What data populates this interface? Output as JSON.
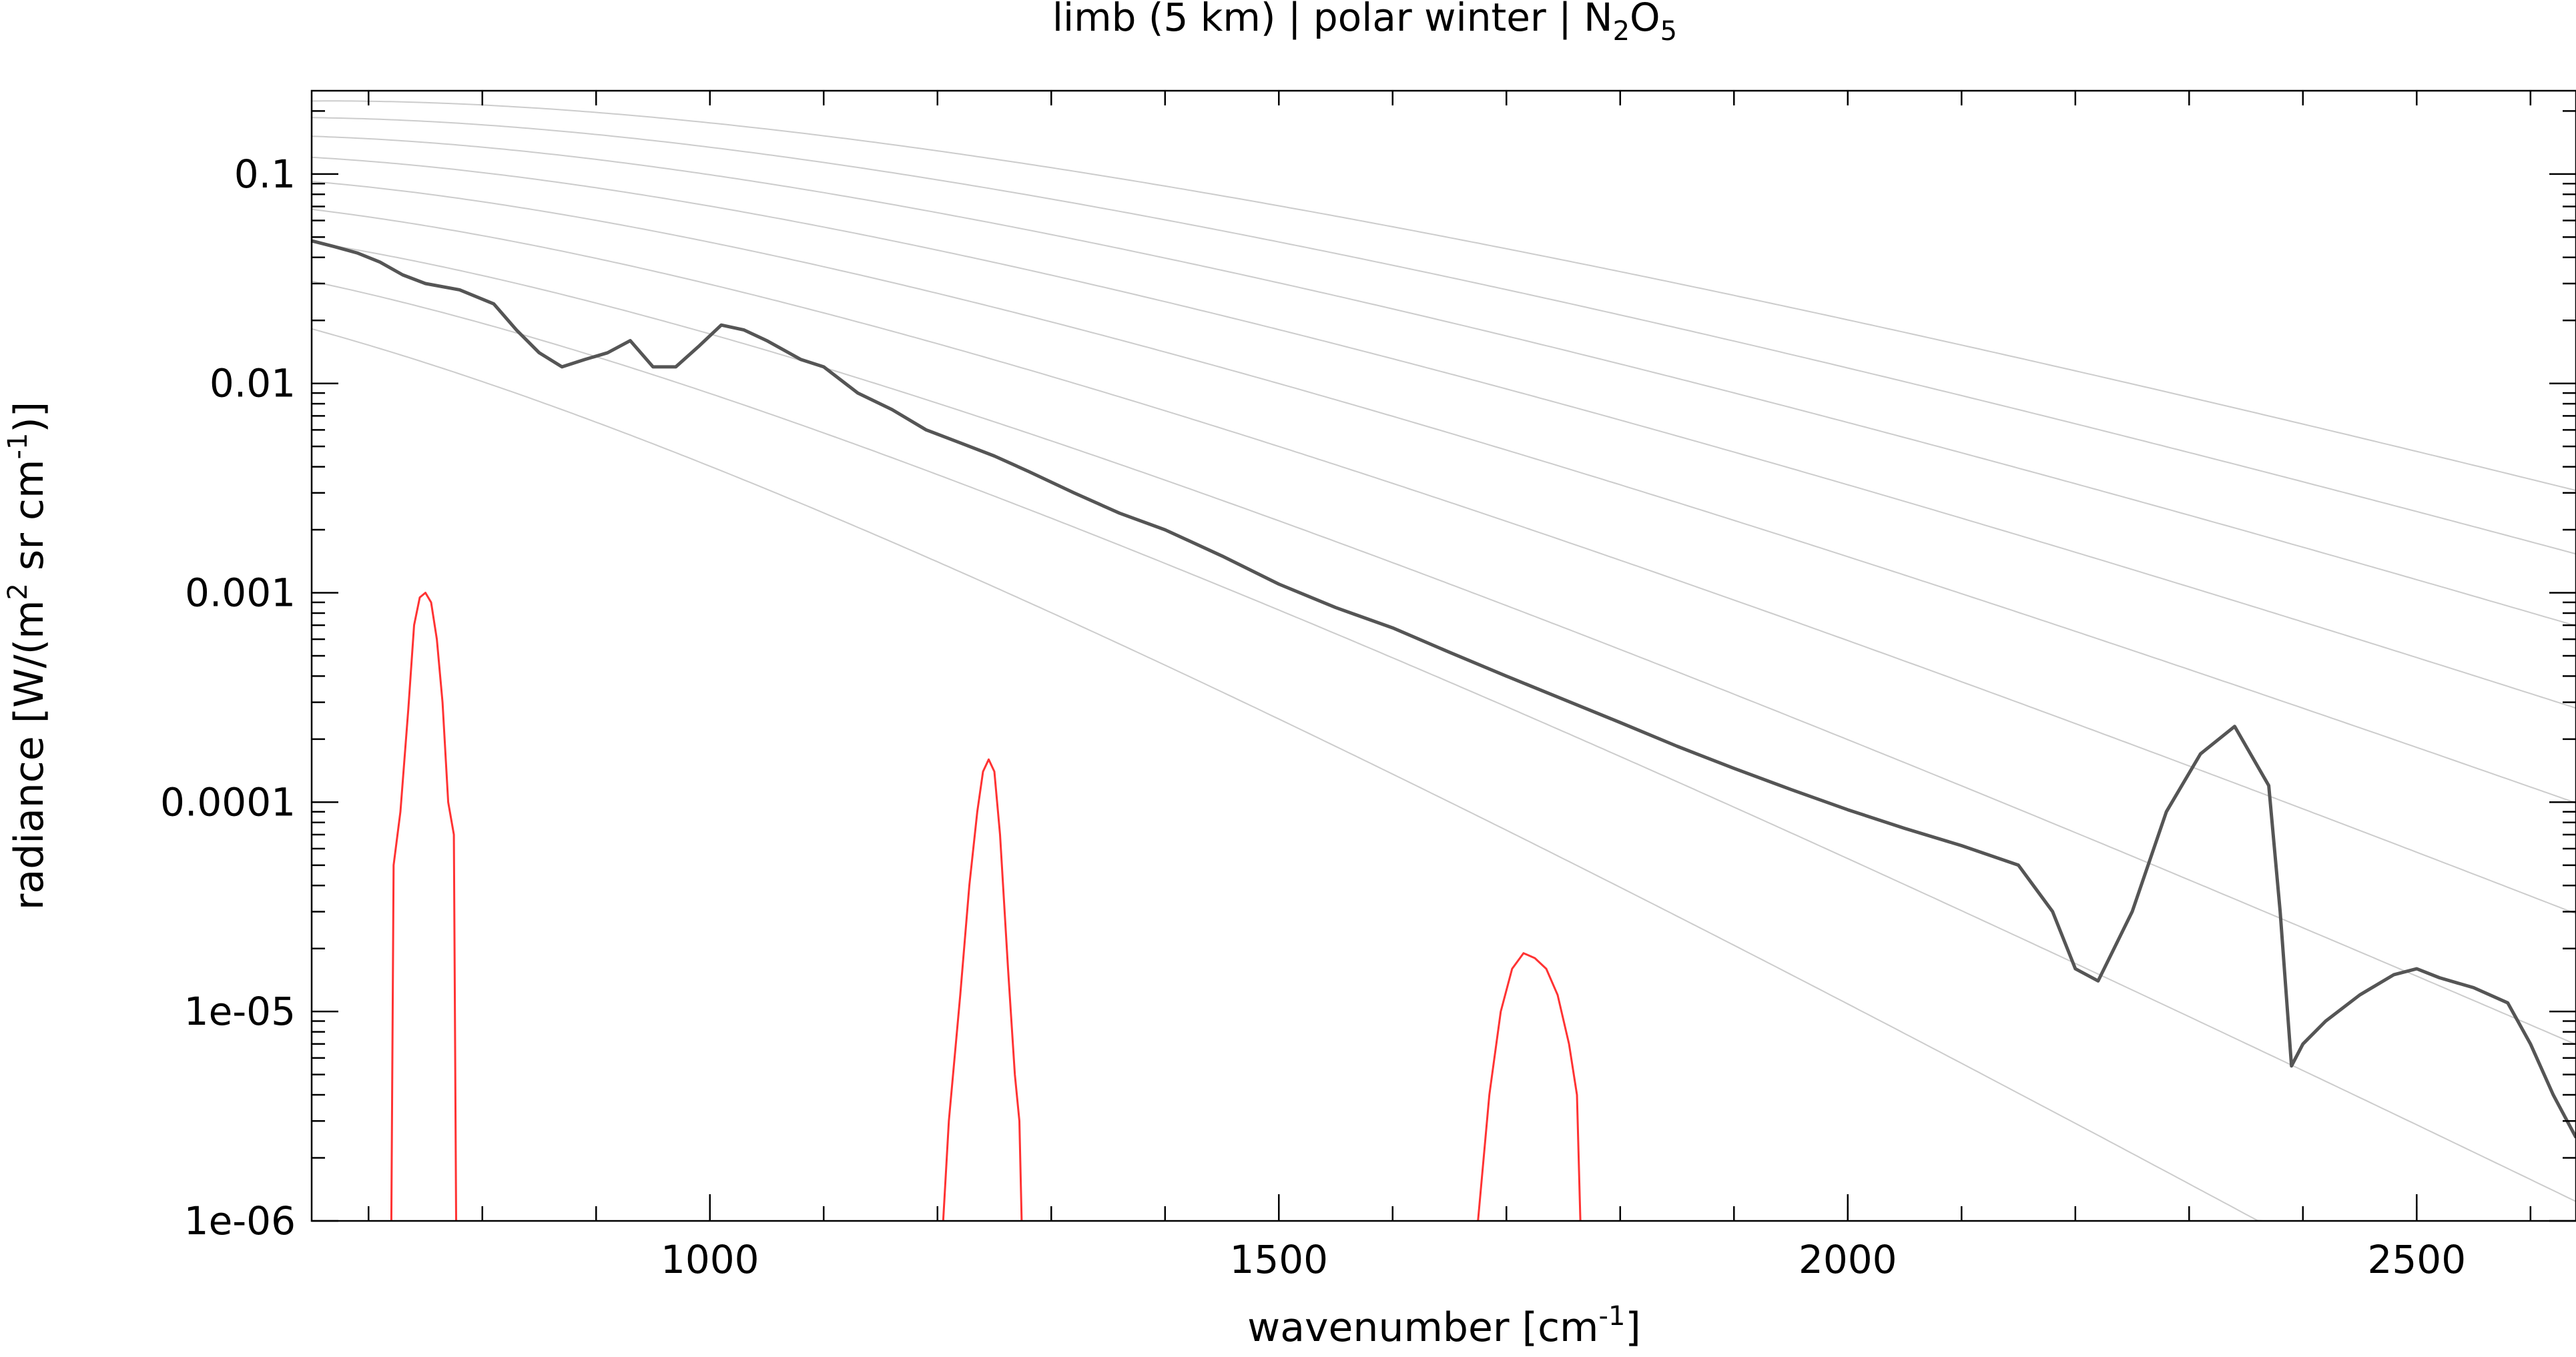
{
  "chart_data": {
    "type": "line",
    "title": {
      "prefix": "limb (5 km) | polar winter | N",
      "sub1": "2",
      "mid": "O",
      "sub2": "5"
    },
    "xlabel": {
      "text": "wavenumber [cm",
      "sup": "-1",
      "end": "]"
    },
    "ylabel": {
      "text": "radiance [W/(m",
      "sup1": "2",
      "mid": " sr cm",
      "sup2": "-1",
      "end": ")]"
    },
    "xlim": [
      650,
      2640
    ],
    "ylim": [
      1e-06,
      0.25
    ],
    "yscale": "log",
    "grid": false,
    "x_ticks": [
      {
        "value": 1000,
        "label": "1000"
      },
      {
        "value": 1500,
        "label": "1500"
      },
      {
        "value": 2000,
        "label": "2000"
      },
      {
        "value": 2500,
        "label": "2500"
      }
    ],
    "y_ticks": [
      {
        "value": 0.1,
        "label": "0.1"
      },
      {
        "value": 0.01,
        "label": "0.01"
      },
      {
        "value": 0.001,
        "label": "0.001"
      },
      {
        "value": 0.0001,
        "label": "0.0001"
      },
      {
        "value": 1e-05,
        "label": "1e-05"
      },
      {
        "value": 1e-06,
        "label": "1e-06"
      }
    ],
    "reference_curves": {
      "type": "planck_blackbody",
      "temperatures_K": [
        180,
        200,
        220,
        240,
        260,
        280,
        300,
        320,
        340
      ],
      "color": "#cccccc"
    },
    "series": [
      {
        "role": "spectrum",
        "color": "#555555",
        "x": [
          650,
          670,
          690,
          710,
          730,
          750,
          780,
          810,
          830,
          850,
          870,
          890,
          910,
          930,
          950,
          970,
          990,
          1010,
          1030,
          1050,
          1080,
          1100,
          1130,
          1160,
          1190,
          1220,
          1250,
          1280,
          1320,
          1360,
          1400,
          1450,
          1500,
          1550,
          1600,
          1650,
          1700,
          1750,
          1800,
          1850,
          1900,
          1950,
          2000,
          2050,
          2100,
          2150,
          2180,
          2200,
          2220,
          2250,
          2280,
          2310,
          2340,
          2370,
          2380,
          2390,
          2400,
          2420,
          2450,
          2480,
          2500,
          2520,
          2550,
          2580,
          2600,
          2620,
          2640
        ],
        "y": [
          0.048,
          0.045,
          0.042,
          0.038,
          0.033,
          0.03,
          0.028,
          0.024,
          0.018,
          0.014,
          0.012,
          0.013,
          0.014,
          0.016,
          0.012,
          0.012,
          0.015,
          0.019,
          0.018,
          0.016,
          0.013,
          0.012,
          0.009,
          0.0075,
          0.006,
          0.0052,
          0.0045,
          0.0038,
          0.003,
          0.0024,
          0.002,
          0.0015,
          0.0011,
          0.00085,
          0.00068,
          0.00052,
          0.0004,
          0.00031,
          0.00024,
          0.000185,
          0.000145,
          0.000115,
          9.2e-05,
          7.5e-05,
          6.2e-05,
          5e-05,
          3e-05,
          1.6e-05,
          1.4e-05,
          3e-05,
          9e-05,
          0.00017,
          0.00023,
          0.00012,
          3e-05,
          5.5e-06,
          7e-06,
          9e-06,
          1.2e-05,
          1.5e-05,
          1.6e-05,
          1.45e-05,
          1.3e-05,
          1.1e-05,
          7e-06,
          4e-06,
          2.5e-06
        ]
      },
      {
        "role": "filter-1",
        "color": "#ff3333",
        "x": [
          720,
          722,
          728,
          735,
          740,
          745,
          750,
          755,
          760,
          765,
          770,
          775,
          777
        ],
        "y": [
          1e-06,
          5e-05,
          9e-05,
          0.00028,
          0.0007,
          0.00095,
          0.001,
          0.0009,
          0.0006,
          0.0003,
          0.0001,
          7e-05,
          1e-06
        ]
      },
      {
        "role": "filter-2",
        "color": "#ff3333",
        "x": [
          1205,
          1210,
          1220,
          1228,
          1235,
          1240,
          1245,
          1250,
          1255,
          1262,
          1268,
          1272,
          1274
        ],
        "y": [
          1e-06,
          3e-06,
          1.2e-05,
          4e-05,
          9e-05,
          0.00014,
          0.00016,
          0.00014,
          7e-05,
          1.6e-05,
          5e-06,
          3e-06,
          1e-06
        ]
      },
      {
        "role": "filter-3",
        "color": "#ff3333",
        "x": [
          1675,
          1685,
          1695,
          1705,
          1715,
          1725,
          1735,
          1745,
          1755,
          1762,
          1765
        ],
        "y": [
          1e-06,
          4e-06,
          1e-05,
          1.6e-05,
          1.9e-05,
          1.8e-05,
          1.6e-05,
          1.2e-05,
          7e-06,
          4e-06,
          1e-06
        ]
      }
    ]
  }
}
